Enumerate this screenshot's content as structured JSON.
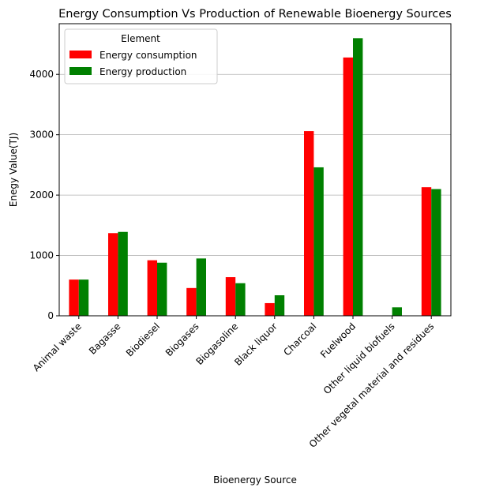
{
  "chart_data": {
    "type": "bar",
    "title": "Energy Consumption Vs Production of Renewable Bioenergy Sources",
    "xlabel": "Bioenergy Source",
    "ylabel": "Enegy Value(TJ)",
    "categories": [
      "Animal waste",
      "Bagasse",
      "Biodiesel",
      "Biogases",
      "Biogasoline",
      "Black liquor",
      "Charcoal",
      "Fuelwood",
      "Other liquid biofuels",
      "Other vegetal material and residues"
    ],
    "series": [
      {
        "name": "Energy consumption",
        "color": "#ff0000",
        "values": [
          600,
          1370,
          920,
          460,
          640,
          210,
          3060,
          4280,
          0,
          2130
        ]
      },
      {
        "name": "Energy production",
        "color": "#008000",
        "values": [
          600,
          1390,
          880,
          950,
          540,
          340,
          2460,
          4600,
          140,
          2100
        ]
      }
    ],
    "ylim": [
      0,
      4840
    ],
    "yticks": [
      0,
      1000,
      2000,
      3000,
      4000
    ],
    "grid": "y",
    "legend": {
      "title": "Element",
      "placement": "top-left"
    }
  }
}
